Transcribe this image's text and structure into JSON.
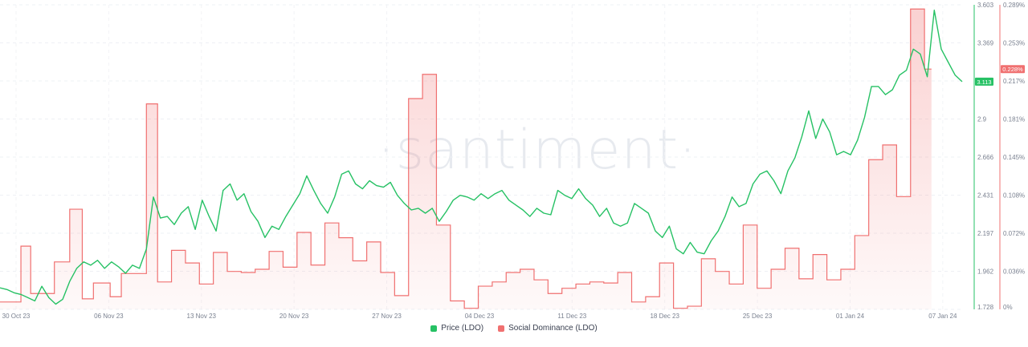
{
  "watermark": "·santiment·",
  "chart_data": {
    "type": "line",
    "x_labels": [
      "30 Oct 23",
      "06 Nov 23",
      "13 Nov 23",
      "20 Nov 23",
      "27 Nov 23",
      "04 Dec 23",
      "11 Dec 23",
      "18 Dec 23",
      "25 Dec 23",
      "01 Jan 24",
      "07 Jan 24"
    ],
    "x_range": [
      0,
      69
    ],
    "price_ticks": [
      "3.603",
      "3.369",
      "3.134",
      "2.9",
      "2.666",
      "2.431",
      "2.197",
      "1.962",
      "1.728"
    ],
    "price_range": [
      1.728,
      3.603
    ],
    "dominance_ticks": [
      "0.289%",
      "0.253%",
      "0.217%",
      "0.181%",
      "0.145%",
      "0.108%",
      "0.072%",
      "0.036%",
      "0%"
    ],
    "dominance_range": [
      0,
      0.289
    ],
    "price_last_label": "3.113",
    "dominance_last_label": "0.228%",
    "series": [
      {
        "name": "Price (LDO)",
        "color": "#26c164",
        "points": [
          [
            0,
            1.86
          ],
          [
            0.5,
            1.85
          ],
          [
            1,
            1.83
          ],
          [
            1.5,
            1.82
          ],
          [
            2,
            1.8
          ],
          [
            2.5,
            1.78
          ],
          [
            3,
            1.87
          ],
          [
            3.5,
            1.8
          ],
          [
            4,
            1.76
          ],
          [
            4.5,
            1.79
          ],
          [
            5,
            1.9
          ],
          [
            5.5,
            1.98
          ],
          [
            6,
            2.02
          ],
          [
            6.5,
            2.0
          ],
          [
            7,
            2.03
          ],
          [
            7.5,
            1.98
          ],
          [
            8,
            2.02
          ],
          [
            8.5,
            1.99
          ],
          [
            9,
            1.95
          ],
          [
            9.5,
            2.0
          ],
          [
            10,
            1.98
          ],
          [
            10.5,
            2.1
          ],
          [
            11,
            2.42
          ],
          [
            11.5,
            2.29
          ],
          [
            12,
            2.3
          ],
          [
            12.5,
            2.25
          ],
          [
            13,
            2.32
          ],
          [
            13.5,
            2.36
          ],
          [
            14,
            2.22
          ],
          [
            14.5,
            2.4
          ],
          [
            15,
            2.3
          ],
          [
            15.5,
            2.21
          ],
          [
            16,
            2.46
          ],
          [
            16.5,
            2.5
          ],
          [
            17,
            2.4
          ],
          [
            17.5,
            2.44
          ],
          [
            18,
            2.33
          ],
          [
            18.5,
            2.27
          ],
          [
            19,
            2.17
          ],
          [
            19.5,
            2.24
          ],
          [
            20,
            2.22
          ],
          [
            20.5,
            2.3
          ],
          [
            21,
            2.37
          ],
          [
            21.5,
            2.44
          ],
          [
            22,
            2.55
          ],
          [
            22.5,
            2.46
          ],
          [
            23,
            2.38
          ],
          [
            23.5,
            2.32
          ],
          [
            24,
            2.42
          ],
          [
            24.5,
            2.56
          ],
          [
            25,
            2.58
          ],
          [
            25.5,
            2.5
          ],
          [
            26,
            2.47
          ],
          [
            26.5,
            2.52
          ],
          [
            27,
            2.49
          ],
          [
            27.5,
            2.48
          ],
          [
            28,
            2.51
          ],
          [
            28.5,
            2.43
          ],
          [
            29,
            2.38
          ],
          [
            29.5,
            2.34
          ],
          [
            30,
            2.35
          ],
          [
            30.5,
            2.32
          ],
          [
            31,
            2.35
          ],
          [
            31.5,
            2.27
          ],
          [
            32,
            2.33
          ],
          [
            32.5,
            2.4
          ],
          [
            33,
            2.43
          ],
          [
            33.5,
            2.42
          ],
          [
            34,
            2.4
          ],
          [
            34.5,
            2.44
          ],
          [
            35,
            2.41
          ],
          [
            35.5,
            2.44
          ],
          [
            36,
            2.46
          ],
          [
            36.5,
            2.4
          ],
          [
            37,
            2.37
          ],
          [
            37.5,
            2.34
          ],
          [
            38,
            2.3
          ],
          [
            38.5,
            2.35
          ],
          [
            39,
            2.32
          ],
          [
            39.5,
            2.31
          ],
          [
            40,
            2.46
          ],
          [
            40.5,
            2.43
          ],
          [
            41,
            2.41
          ],
          [
            41.5,
            2.47
          ],
          [
            42,
            2.41
          ],
          [
            42.5,
            2.37
          ],
          [
            43,
            2.3
          ],
          [
            43.5,
            2.35
          ],
          [
            44,
            2.26
          ],
          [
            44.5,
            2.24
          ],
          [
            45,
            2.26
          ],
          [
            45.5,
            2.38
          ],
          [
            46,
            2.35
          ],
          [
            46.5,
            2.32
          ],
          [
            47,
            2.21
          ],
          [
            47.5,
            2.17
          ],
          [
            48,
            2.24
          ],
          [
            48.5,
            2.1
          ],
          [
            49,
            2.07
          ],
          [
            49.5,
            2.14
          ],
          [
            50,
            2.08
          ],
          [
            50.5,
            2.07
          ],
          [
            51,
            2.15
          ],
          [
            51.5,
            2.21
          ],
          [
            52,
            2.3
          ],
          [
            52.5,
            2.42
          ],
          [
            53,
            2.36
          ],
          [
            53.5,
            2.38
          ],
          [
            54,
            2.5
          ],
          [
            54.5,
            2.56
          ],
          [
            55,
            2.58
          ],
          [
            55.5,
            2.52
          ],
          [
            56,
            2.44
          ],
          [
            56.5,
            2.58
          ],
          [
            57,
            2.66
          ],
          [
            57.5,
            2.79
          ],
          [
            58,
            2.95
          ],
          [
            58.5,
            2.78
          ],
          [
            59,
            2.9
          ],
          [
            59.5,
            2.82
          ],
          [
            60,
            2.68
          ],
          [
            60.5,
            2.7
          ],
          [
            61,
            2.68
          ],
          [
            61.5,
            2.77
          ],
          [
            62,
            2.91
          ],
          [
            62.5,
            3.1
          ],
          [
            63,
            3.1
          ],
          [
            63.5,
            3.05
          ],
          [
            64,
            3.08
          ],
          [
            64.5,
            3.17
          ],
          [
            65,
            3.2
          ],
          [
            65.5,
            3.33
          ],
          [
            66,
            3.3
          ],
          [
            66.5,
            3.16
          ],
          [
            67,
            3.57
          ],
          [
            67.5,
            3.33
          ],
          [
            68,
            3.25
          ],
          [
            68.5,
            3.17
          ],
          [
            69,
            3.13
          ]
        ]
      },
      {
        "name": "Social Dominance (LDO)",
        "color": "#f07070",
        "steps": [
          [
            0,
            0.007
          ],
          [
            1.5,
            0.06
          ],
          [
            2.2,
            0.015
          ],
          [
            3.9,
            0.045
          ],
          [
            5,
            0.095
          ],
          [
            5.9,
            0.01
          ],
          [
            6.7,
            0.025
          ],
          [
            7.9,
            0.012
          ],
          [
            8.7,
            0.034
          ],
          [
            9.7,
            0.034
          ],
          [
            10.5,
            0.195
          ],
          [
            11.3,
            0.026
          ],
          [
            12.3,
            0.056
          ],
          [
            13.3,
            0.044
          ],
          [
            14.3,
            0.024
          ],
          [
            15.3,
            0.054
          ],
          [
            16.3,
            0.036
          ],
          [
            17.3,
            0.035
          ],
          [
            18.3,
            0.038
          ],
          [
            19.3,
            0.055
          ],
          [
            20.3,
            0.04
          ],
          [
            21.3,
            0.073
          ],
          [
            22.3,
            0.042
          ],
          [
            23.3,
            0.082
          ],
          [
            24.3,
            0.068
          ],
          [
            25.3,
            0.046
          ],
          [
            26.3,
            0.064
          ],
          [
            27.3,
            0.035
          ],
          [
            28.3,
            0.013
          ],
          [
            29.3,
            0.2
          ],
          [
            30.3,
            0.223
          ],
          [
            31.3,
            0.08
          ],
          [
            32.3,
            0.008
          ],
          [
            33.3,
            0.001
          ],
          [
            34.3,
            0.022
          ],
          [
            35.3,
            0.026
          ],
          [
            36.3,
            0.035
          ],
          [
            37.3,
            0.038
          ],
          [
            38.3,
            0.028
          ],
          [
            39.3,
            0.015
          ],
          [
            40.3,
            0.02
          ],
          [
            41.3,
            0.024
          ],
          [
            42.3,
            0.026
          ],
          [
            43.3,
            0.025
          ],
          [
            44.3,
            0.035
          ],
          [
            45.3,
            0.007
          ],
          [
            46.3,
            0.012
          ],
          [
            47.3,
            0.044
          ],
          [
            48.3,
            0.001
          ],
          [
            49.3,
            0.003
          ],
          [
            50.3,
            0.048
          ],
          [
            51.3,
            0.036
          ],
          [
            52.3,
            0.024
          ],
          [
            53.3,
            0.08
          ],
          [
            54.3,
            0.02
          ],
          [
            55.3,
            0.038
          ],
          [
            56.3,
            0.058
          ],
          [
            57.3,
            0.029
          ],
          [
            58.3,
            0.052
          ],
          [
            59.3,
            0.028
          ],
          [
            60.3,
            0.038
          ],
          [
            61.3,
            0.07
          ],
          [
            62.3,
            0.142
          ],
          [
            63.3,
            0.156
          ],
          [
            64.3,
            0.107
          ],
          [
            65.3,
            0.285
          ],
          [
            66.3,
            0.228
          ],
          [
            66.8,
            0.228
          ]
        ]
      }
    ]
  }
}
